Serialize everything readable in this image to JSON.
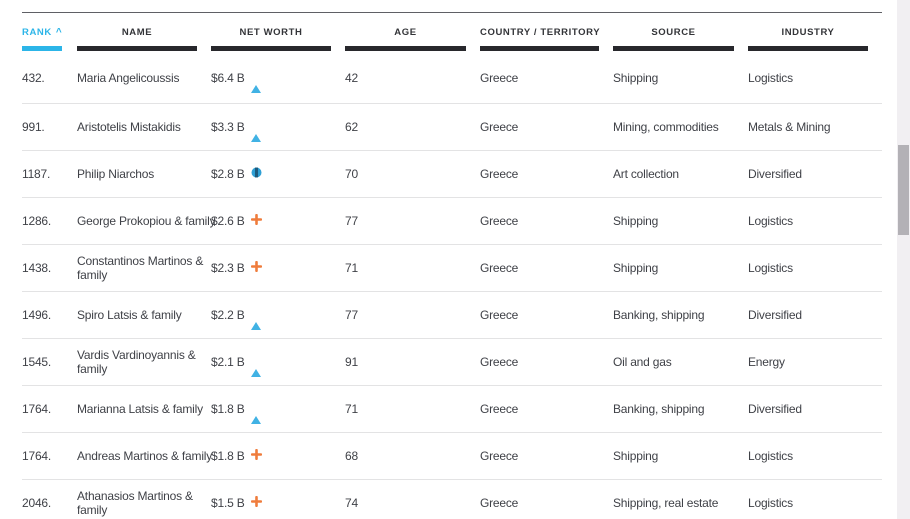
{
  "table": {
    "columns": [
      {
        "id": "rank",
        "label": "RANK",
        "sorted": "asc"
      },
      {
        "id": "name",
        "label": "NAME"
      },
      {
        "id": "net_worth",
        "label": "NET WORTH"
      },
      {
        "id": "age",
        "label": "AGE"
      },
      {
        "id": "country",
        "label": "COUNTRY / TERRITORY"
      },
      {
        "id": "source",
        "label": "SOURCE"
      },
      {
        "id": "industry",
        "label": "INDUSTRY"
      }
    ],
    "sort_indicator": "^",
    "rows": [
      {
        "rank": "432.",
        "name_lines": [
          "Maria Angelicoussis"
        ],
        "net_worth": "$6.4 B",
        "change_icon": "up",
        "age": "42",
        "country": "Greece",
        "source": "Shipping",
        "industry": "Logistics"
      },
      {
        "rank": "991.",
        "name_lines": [
          "Aristotelis Mistakidis"
        ],
        "net_worth": "$3.3 B",
        "change_icon": "up",
        "age": "62",
        "country": "Greece",
        "source": "Mining, commodities",
        "industry": "Metals & Mining"
      },
      {
        "rank": "1187.",
        "name_lines": [
          "Philip Niarchos"
        ],
        "net_worth": "$2.8 B",
        "change_icon": "no-change",
        "age": "70",
        "country": "Greece",
        "source": "Art collection",
        "industry": "Diversified"
      },
      {
        "rank": "1286.",
        "name_lines": [
          "George Prokopiou & family"
        ],
        "net_worth": "$2.6 B",
        "change_icon": "plus",
        "age": "77",
        "country": "Greece",
        "source": "Shipping",
        "industry": "Logistics"
      },
      {
        "rank": "1438.",
        "name_lines": [
          "Constantinos Martinos &",
          "family"
        ],
        "net_worth": "$2.3 B",
        "change_icon": "plus",
        "age": "71",
        "country": "Greece",
        "source": "Shipping",
        "industry": "Logistics"
      },
      {
        "rank": "1496.",
        "name_lines": [
          "Spiro Latsis & family"
        ],
        "net_worth": "$2.2 B",
        "change_icon": "up",
        "age": "77",
        "country": "Greece",
        "source": "Banking, shipping",
        "industry": "Diversified"
      },
      {
        "rank": "1545.",
        "name_lines": [
          "Vardis Vardinoyannis &",
          "family"
        ],
        "net_worth": "$2.1 B",
        "change_icon": "up",
        "age": "91",
        "country": "Greece",
        "source": "Oil and gas",
        "industry": "Energy"
      },
      {
        "rank": "1764.",
        "name_lines": [
          "Marianna Latsis & family"
        ],
        "net_worth": "$1.8 B",
        "change_icon": "up",
        "age": "71",
        "country": "Greece",
        "source": "Banking, shipping",
        "industry": "Diversified"
      },
      {
        "rank": "1764.",
        "name_lines": [
          "Andreas Martinos & family"
        ],
        "net_worth": "$1.8 B",
        "change_icon": "plus",
        "age": "68",
        "country": "Greece",
        "source": "Shipping",
        "industry": "Logistics"
      },
      {
        "rank": "2046.",
        "name_lines": [
          "Athanasios Martinos &",
          "family"
        ],
        "net_worth": "$1.5 B",
        "change_icon": "plus",
        "age": "74",
        "country": "Greece",
        "source": "Shipping, real estate",
        "industry": "Logistics"
      }
    ]
  },
  "colors": {
    "accent_cyan": "#2cb5e8",
    "header_bar_dark": "#28282c",
    "plus_orange": "#ef7c3c",
    "up_triangle_blue": "#41b2e4",
    "no_change_blue": "#2e9fd4",
    "no_change_dark": "#1c5a7d",
    "row_separator": "#e3e3e4",
    "scroll_track": "#f1eff2",
    "scroll_thumb": "#b3b1b6"
  }
}
